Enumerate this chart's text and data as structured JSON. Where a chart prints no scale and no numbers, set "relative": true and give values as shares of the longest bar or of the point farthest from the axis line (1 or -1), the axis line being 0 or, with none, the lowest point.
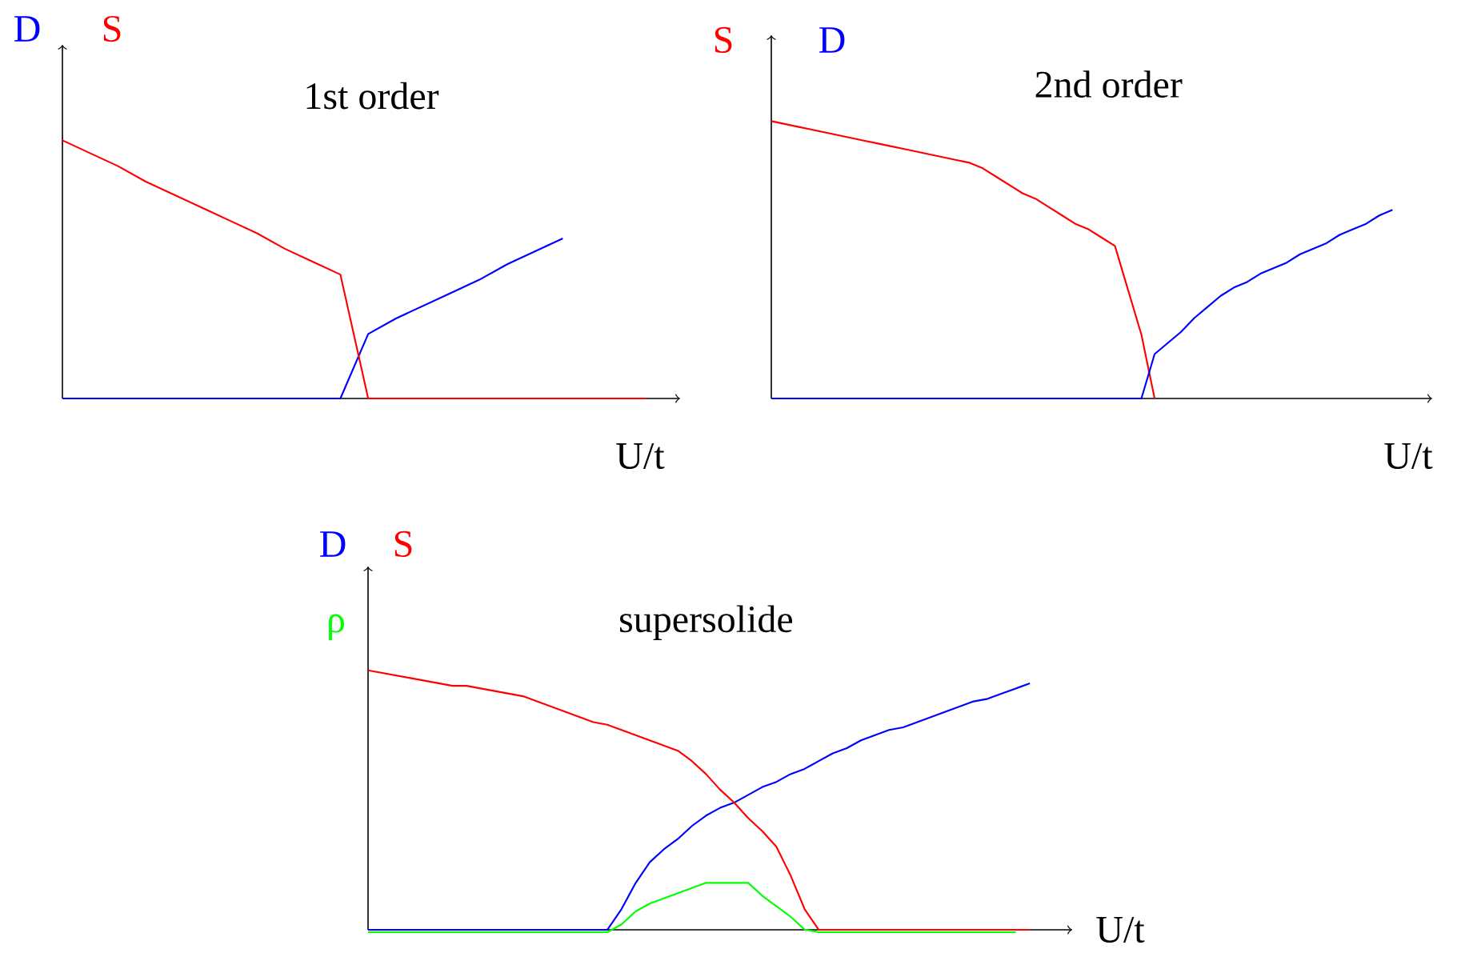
{
  "chart_data": [
    {
      "type": "line",
      "title": "1st order",
      "xlabel": "U/t",
      "relative": true,
      "categories": [
        null,
        null,
        null,
        null,
        null,
        null,
        null,
        null,
        null,
        null,
        null,
        null,
        null,
        null,
        null,
        null,
        null,
        null,
        null,
        null,
        null,
        null
      ],
      "series": [
        {
          "name": "D",
          "color": "#0000ff",
          "values": [
            0,
            0,
            0,
            0,
            0,
            0,
            0,
            0,
            0,
            0,
            0,
            0.25,
            0.31,
            0.36,
            0.41,
            0.46,
            0.52,
            0.57,
            0.62,
            null,
            null,
            null
          ]
        },
        {
          "name": "S",
          "color": "#ff0000",
          "values": [
            1,
            0.95,
            0.9,
            0.84,
            0.79,
            0.74,
            0.69,
            0.64,
            0.58,
            0.53,
            0.48,
            0,
            0,
            0,
            0,
            0,
            0,
            0,
            0,
            0,
            0,
            0
          ]
        }
      ]
    },
    {
      "type": "line",
      "title": "2nd order",
      "xlabel": "U/t",
      "relative": true,
      "categories": [
        null,
        null,
        null,
        null,
        null,
        null,
        null,
        null,
        null,
        null,
        null,
        null,
        null,
        null,
        null,
        null,
        null,
        null,
        null,
        null,
        null,
        null,
        null,
        null,
        null,
        null,
        null,
        null,
        null,
        null,
        null,
        null,
        null,
        null,
        null,
        null,
        null,
        null,
        null,
        null,
        null,
        null,
        null,
        null,
        null,
        null,
        null,
        null
      ],
      "series": [
        {
          "name": "S",
          "color": "#ff0000",
          "values": [
            1,
            0.99,
            0.98,
            0.97,
            0.96,
            0.95,
            0.94,
            0.93,
            0.92,
            0.91,
            0.9,
            0.89,
            0.88,
            0.87,
            0.86,
            0.85,
            0.83,
            0.8,
            0.77,
            0.74,
            0.72,
            0.69,
            0.66,
            0.63,
            0.61,
            0.58,
            0.55,
            0.39,
            0.23,
            0,
            null,
            null,
            null,
            null,
            null,
            null,
            null,
            null,
            null,
            null,
            null,
            null,
            null,
            null,
            null,
            null,
            null,
            null
          ]
        },
        {
          "name": "D",
          "color": "#0000ff",
          "values": [
            0,
            0,
            0,
            0,
            0,
            0,
            0,
            0,
            0,
            0,
            0,
            0,
            0,
            0,
            0,
            0,
            0,
            0,
            0,
            0,
            0,
            0,
            0,
            0,
            0,
            0,
            0,
            0,
            0,
            0.16,
            0.2,
            0.24,
            0.29,
            0.33,
            0.37,
            0.4,
            0.42,
            0.45,
            0.47,
            0.49,
            0.52,
            0.54,
            0.56,
            0.59,
            0.61,
            0.63,
            0.66,
            0.68
          ]
        }
      ]
    },
    {
      "type": "line",
      "title": "supersolide",
      "xlabel": "U/t",
      "relative": true,
      "categories": [
        null,
        null,
        null,
        null,
        null,
        null,
        null,
        null,
        null,
        null,
        null,
        null,
        null,
        null,
        null,
        null,
        null,
        null,
        null,
        null,
        null,
        null,
        null,
        null,
        null,
        null,
        null,
        null,
        null,
        null,
        null,
        null,
        null,
        null,
        null,
        null,
        null,
        null,
        null,
        null,
        null,
        null,
        null,
        null,
        null,
        null,
        null,
        null
      ],
      "series": [
        {
          "name": "D",
          "color": "#0000ff",
          "values": [
            0,
            0,
            0,
            0,
            0,
            0,
            0,
            0,
            0,
            0,
            0,
            0,
            0,
            0,
            0,
            0,
            0,
            0,
            0.08,
            0.18,
            0.26,
            0.31,
            0.35,
            0.4,
            0.44,
            0.47,
            0.49,
            0.52,
            0.55,
            0.57,
            0.6,
            0.62,
            0.65,
            0.68,
            0.7,
            0.73,
            0.75,
            0.77,
            0.78,
            0.8,
            0.82,
            0.84,
            0.86,
            0.88,
            0.89,
            0.91,
            0.93,
            0.95
          ]
        },
        {
          "name": "S",
          "color": "#ff0000",
          "values": [
            1,
            0.99,
            0.98,
            0.97,
            0.96,
            0.95,
            0.94,
            0.94,
            0.93,
            0.92,
            0.91,
            0.9,
            0.88,
            0.86,
            0.84,
            0.82,
            0.8,
            0.79,
            0.77,
            0.75,
            0.73,
            0.71,
            0.69,
            0.65,
            0.6,
            0.54,
            0.49,
            0.43,
            0.38,
            0.32,
            0.21,
            0.08,
            0,
            0,
            0,
            0,
            0,
            0,
            0,
            0,
            0,
            0,
            0,
            0,
            0,
            0,
            0,
            0
          ]
        },
        {
          "name": "ρ",
          "color": "#00ff00",
          "values": [
            0,
            0,
            0,
            0,
            0,
            0,
            0,
            0,
            0,
            0,
            0,
            0,
            0,
            0,
            0,
            0,
            0,
            0,
            0.03,
            0.08,
            0.11,
            0.13,
            0.15,
            0.17,
            0.19,
            0.19,
            0.19,
            0.19,
            0.14,
            0.1,
            0.06,
            0.01,
            0,
            0,
            0,
            0,
            0,
            0,
            0,
            0,
            0,
            0,
            0,
            0,
            0,
            0,
            0,
            null
          ]
        }
      ]
    }
  ]
}
